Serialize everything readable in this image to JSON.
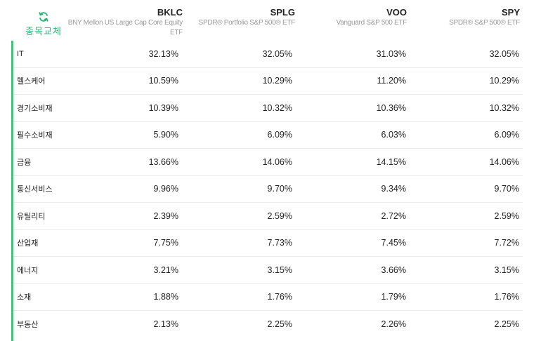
{
  "swap_label": "종목교체",
  "columns": [
    {
      "ticker": "BKLC",
      "fullname_line1": "BNY Mellon US Large Cap Core Equity",
      "fullname_line2": "ETF"
    },
    {
      "ticker": "SPLG",
      "fullname_line1": "SPDR® Portfolio S&P 500® ETF",
      "fullname_line2": ""
    },
    {
      "ticker": "VOO",
      "fullname_line1": "Vanguard S&P 500 ETF",
      "fullname_line2": ""
    },
    {
      "ticker": "SPY",
      "fullname_line1": "SPDR® S&P 500® ETF",
      "fullname_line2": ""
    }
  ],
  "rows": [
    {
      "sector": "IT",
      "values": [
        "32.13%",
        "32.05%",
        "31.03%",
        "32.05%"
      ]
    },
    {
      "sector": "헬스케어",
      "values": [
        "10.59%",
        "10.29%",
        "11.20%",
        "10.29%"
      ]
    },
    {
      "sector": "경기소비재",
      "values": [
        "10.39%",
        "10.32%",
        "10.36%",
        "10.32%"
      ]
    },
    {
      "sector": "필수소비재",
      "values": [
        "5.90%",
        "6.09%",
        "6.03%",
        "6.09%"
      ]
    },
    {
      "sector": "금융",
      "values": [
        "13.66%",
        "14.06%",
        "14.15%",
        "14.06%"
      ]
    },
    {
      "sector": "통신서비스",
      "values": [
        "9.96%",
        "9.70%",
        "9.34%",
        "9.70%"
      ]
    },
    {
      "sector": "유틸리티",
      "values": [
        "2.39%",
        "2.59%",
        "2.72%",
        "2.59%"
      ]
    },
    {
      "sector": "산업재",
      "values": [
        "7.75%",
        "7.73%",
        "7.45%",
        "7.72%"
      ]
    },
    {
      "sector": "에너지",
      "values": [
        "3.21%",
        "3.15%",
        "3.66%",
        "3.15%"
      ]
    },
    {
      "sector": "소재",
      "values": [
        "1.88%",
        "1.76%",
        "1.79%",
        "1.76%"
      ]
    },
    {
      "sector": "부동산",
      "values": [
        "2.13%",
        "2.25%",
        "2.26%",
        "2.25%"
      ]
    }
  ],
  "accent_color": "#33c87a",
  "icons": {
    "swap": "refresh-icon"
  }
}
